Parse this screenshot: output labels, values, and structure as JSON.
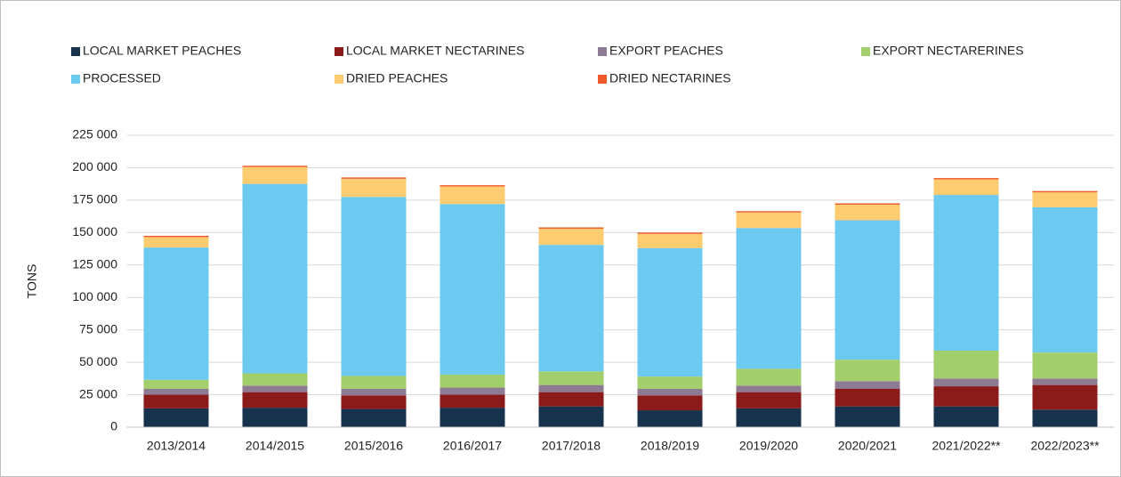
{
  "chart_data": {
    "type": "stacked_bar",
    "y_label": "TONS",
    "categories": [
      "2013/2014",
      "2014/2015",
      "2015/2016",
      "2016/2017",
      "2017/2018",
      "2018/2019",
      "2019/2020",
      "2020/2021",
      "2021/2022**",
      "2022/2023**"
    ],
    "series": [
      {
        "name": "LOCAL MARKET PEACHES",
        "color": "#17324d",
        "values": [
          14500,
          15000,
          14000,
          15000,
          16000,
          13000,
          14500,
          16000,
          16000,
          13500
        ]
      },
      {
        "name": "LOCAL MARKET NECTARINES",
        "color": "#8b1a1a",
        "values": [
          10500,
          12000,
          10500,
          10000,
          11000,
          11500,
          12500,
          13500,
          15500,
          19000
        ]
      },
      {
        "name": "EXPORT PEACHES",
        "color": "#8d7b93",
        "values": [
          4500,
          5000,
          5000,
          5500,
          5500,
          5000,
          5000,
          6000,
          6000,
          5000
        ]
      },
      {
        "name": "EXPORT NECTARERINES",
        "color": "#a2cf6b",
        "values": [
          7000,
          9500,
          10000,
          10000,
          10500,
          9500,
          13000,
          16500,
          21500,
          20000
        ]
      },
      {
        "name": "PROCESSED",
        "color": "#6ccaf0",
        "values": [
          102000,
          146000,
          138000,
          131500,
          97500,
          99000,
          108500,
          107500,
          120000,
          112000
        ]
      },
      {
        "name": "DRIED PEACHES",
        "color": "#fdcb70",
        "values": [
          8000,
          13000,
          14000,
          13500,
          12500,
          11000,
          12000,
          12000,
          12000,
          11500
        ]
      },
      {
        "name": "DRIED NECTARINES",
        "color": "#ef5a2a",
        "values": [
          1000,
          1000,
          1000,
          1000,
          1000,
          1000,
          1000,
          1000,
          1000,
          1000
        ]
      }
    ],
    "ylim": [
      0,
      225000
    ],
    "yticks": [
      0,
      {
        "value": 25000,
        "label": "25 000"
      },
      {
        "value": 50000,
        "label": "50 000"
      },
      {
        "value": 75000,
        "label": "75 000"
      },
      {
        "value": 100000,
        "label": "100 000"
      },
      {
        "value": 125000,
        "label": "125 000"
      },
      {
        "value": 150000,
        "label": "150 000"
      },
      {
        "value": 175000,
        "label": "175 000"
      },
      {
        "value": 200000,
        "label": "200 000"
      },
      {
        "value": 225000,
        "label": "225 000"
      }
    ],
    "grid": true,
    "legend": "top"
  }
}
